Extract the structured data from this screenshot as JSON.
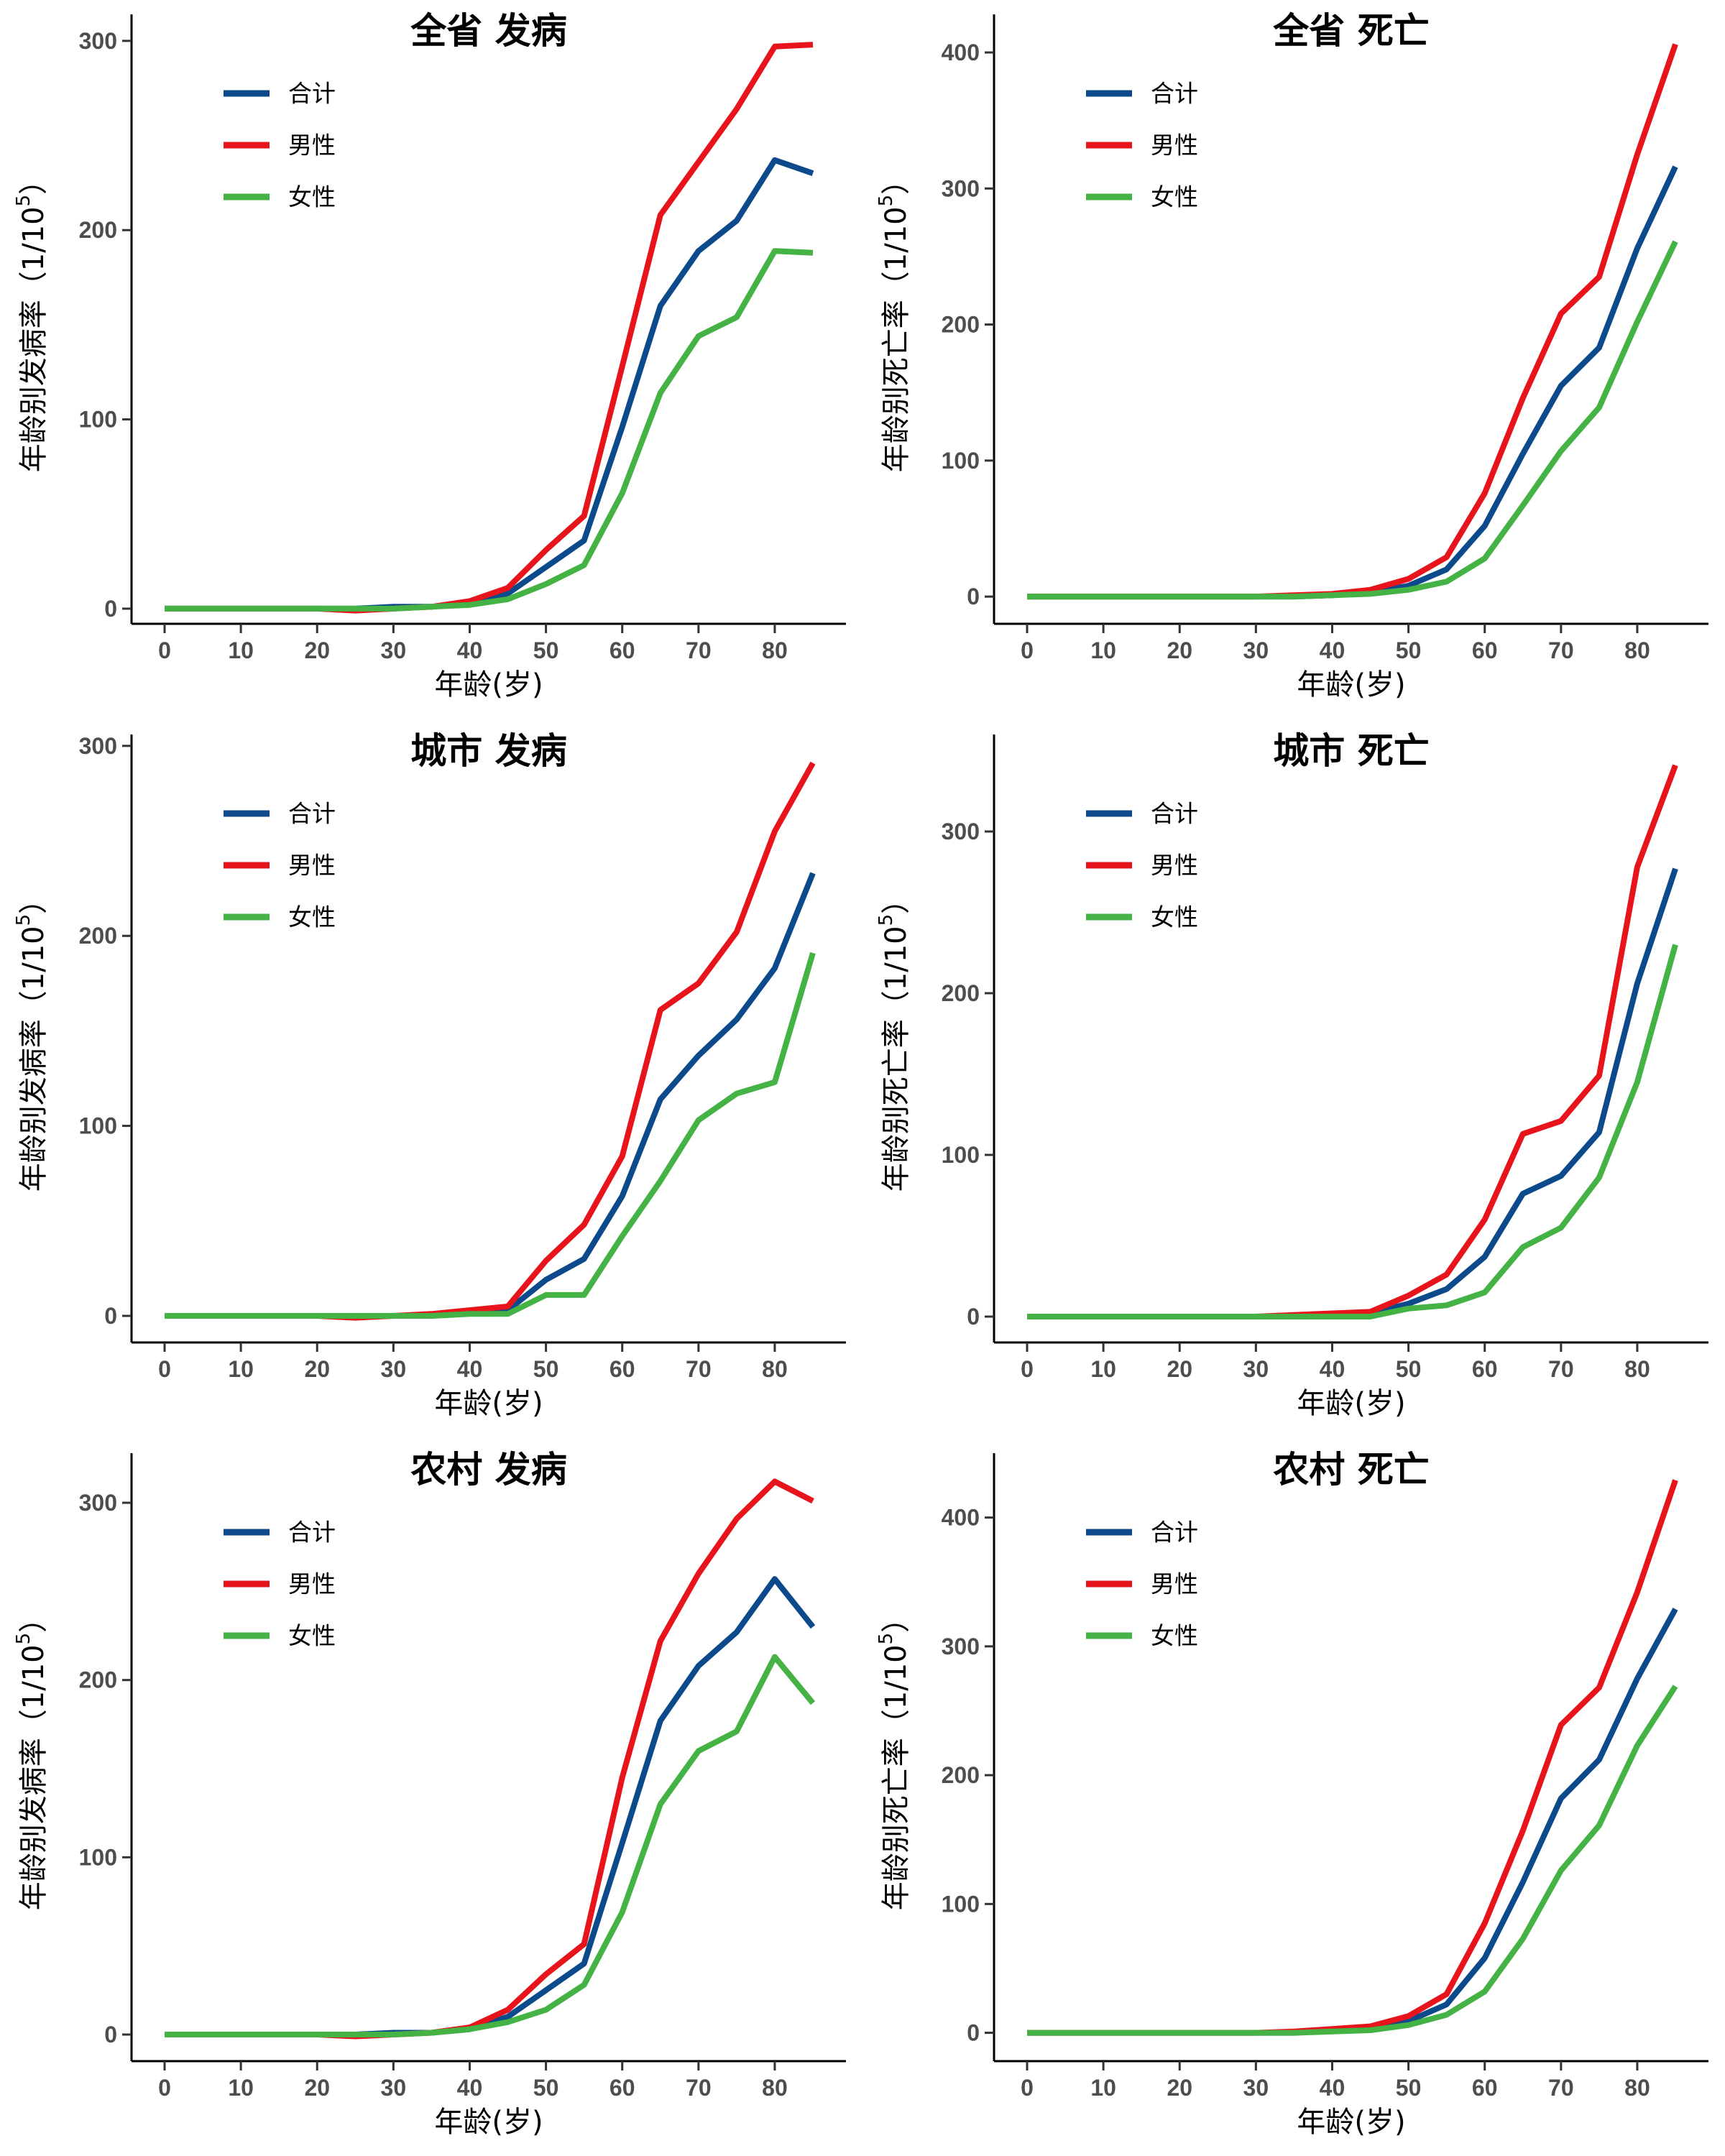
{
  "chart_data": [
    {
      "type": "line",
      "title": "全省 发病",
      "xlabel": "年龄(岁)",
      "ylabel": "年龄别发病率（1/10",
      "ylabel_sup": "5",
      "ylabel_end": "）",
      "xlim": [
        0,
        85
      ],
      "ylim": [
        -8,
        314
      ],
      "xticks": [
        0,
        10,
        20,
        30,
        40,
        50,
        60,
        70,
        80
      ],
      "yticks": [
        0,
        100,
        200,
        300
      ],
      "legend": [
        "合计",
        "男性",
        "女性"
      ],
      "legend_position": "top-left",
      "x": [
        0,
        5,
        10,
        15,
        20,
        25,
        30,
        35,
        40,
        45,
        50,
        55,
        60,
        65,
        70,
        75,
        80,
        85
      ],
      "series": [
        {
          "name": "合计",
          "color": "#0c4a8c",
          "values": [
            0,
            0,
            0,
            0,
            0,
            0,
            1,
            1,
            3,
            8,
            22,
            36,
            96,
            160,
            189,
            205,
            237,
            230
          ]
        },
        {
          "name": "男性",
          "color": "#e8141c",
          "values": [
            0,
            0,
            0,
            0,
            0,
            -1,
            0,
            1,
            4,
            11,
            31,
            49,
            128,
            208,
            236,
            264,
            297,
            298
          ]
        },
        {
          "name": "女性",
          "color": "#45b245",
          "values": [
            0,
            0,
            0,
            0,
            0,
            0,
            0,
            1,
            2,
            5,
            13,
            23,
            61,
            114,
            144,
            154,
            189,
            188
          ]
        }
      ]
    },
    {
      "type": "line",
      "title": "全省 死亡",
      "xlabel": "年龄(岁)",
      "ylabel": "年龄别死亡率（1/10",
      "ylabel_sup": "5",
      "ylabel_end": "）",
      "xlim": [
        0,
        85
      ],
      "ylim": [
        -20,
        428
      ],
      "xticks": [
        0,
        10,
        20,
        30,
        40,
        50,
        60,
        70,
        80
      ],
      "yticks": [
        0,
        100,
        200,
        300,
        400
      ],
      "legend": [
        "合计",
        "男性",
        "女性"
      ],
      "legend_position": "top-left",
      "x": [
        0,
        5,
        10,
        15,
        20,
        25,
        30,
        35,
        40,
        45,
        50,
        55,
        60,
        65,
        70,
        75,
        80,
        85
      ],
      "series": [
        {
          "name": "合计",
          "color": "#0c4a8c",
          "values": [
            0,
            0,
            0,
            0,
            0,
            0,
            0,
            0,
            1,
            3,
            8,
            20,
            52,
            105,
            155,
            183,
            256,
            316
          ]
        },
        {
          "name": "男性",
          "color": "#e8141c",
          "values": [
            0,
            0,
            0,
            0,
            0,
            0,
            0,
            1,
            2,
            5,
            13,
            29,
            76,
            146,
            208,
            235,
            325,
            406
          ]
        },
        {
          "name": "女性",
          "color": "#45b245",
          "values": [
            0,
            0,
            0,
            0,
            0,
            0,
            0,
            0,
            1,
            2,
            5,
            11,
            28,
            67,
            107,
            139,
            202,
            261
          ]
        }
      ]
    },
    {
      "type": "line",
      "title": "城市 发病",
      "xlabel": "年龄(岁)",
      "ylabel": "年龄别发病率（1/10",
      "ylabel_sup": "5",
      "ylabel_end": "）",
      "xlim": [
        0,
        85
      ],
      "ylim": [
        -14,
        306
      ],
      "xticks": [
        0,
        10,
        20,
        30,
        40,
        50,
        60,
        70,
        80
      ],
      "yticks": [
        0,
        100,
        200,
        300
      ],
      "legend": [
        "合计",
        "男性",
        "女性"
      ],
      "legend_position": "top-left",
      "x": [
        0,
        5,
        10,
        15,
        20,
        25,
        30,
        35,
        40,
        45,
        50,
        55,
        60,
        65,
        70,
        75,
        80,
        85
      ],
      "series": [
        {
          "name": "合计",
          "color": "#0c4a8c",
          "values": [
            0,
            0,
            0,
            0,
            0,
            0,
            0,
            0,
            2,
            3,
            19,
            30,
            63,
            114,
            137,
            156,
            183,
            233
          ]
        },
        {
          "name": "男性",
          "color": "#e8141c",
          "values": [
            0,
            0,
            0,
            0,
            0,
            -1,
            0,
            1,
            3,
            5,
            29,
            48,
            84,
            161,
            175,
            202,
            255,
            291
          ]
        },
        {
          "name": "女性",
          "color": "#45b245",
          "values": [
            0,
            0,
            0,
            0,
            0,
            0,
            0,
            0,
            1,
            1,
            11,
            11,
            42,
            71,
            103,
            117,
            123,
            191
          ]
        }
      ]
    },
    {
      "type": "line",
      "title": "城市 死亡",
      "xlabel": "年龄(岁)",
      "ylabel": "年龄别死亡率（1/10",
      "ylabel_sup": "5",
      "ylabel_end": "）",
      "xlim": [
        0,
        85
      ],
      "ylim": [
        -16,
        360
      ],
      "xticks": [
        0,
        10,
        20,
        30,
        40,
        50,
        60,
        70,
        80
      ],
      "yticks": [
        0,
        100,
        200,
        300
      ],
      "legend": [
        "合计",
        "男性",
        "女性"
      ],
      "legend_position": "top-left",
      "x": [
        0,
        5,
        10,
        15,
        20,
        25,
        30,
        35,
        40,
        45,
        50,
        55,
        60,
        65,
        70,
        75,
        80,
        85
      ],
      "series": [
        {
          "name": "合计",
          "color": "#0c4a8c",
          "values": [
            0,
            0,
            0,
            0,
            0,
            0,
            0,
            0,
            1,
            2,
            8,
            17,
            37,
            76,
            87,
            114,
            206,
            277
          ]
        },
        {
          "name": "男性",
          "color": "#e8141c",
          "values": [
            0,
            0,
            0,
            0,
            0,
            0,
            0,
            1,
            2,
            3,
            13,
            26,
            60,
            113,
            121,
            149,
            278,
            341
          ]
        },
        {
          "name": "女性",
          "color": "#45b245",
          "values": [
            0,
            0,
            0,
            0,
            0,
            0,
            0,
            0,
            0,
            0,
            5,
            7,
            15,
            43,
            55,
            86,
            145,
            230
          ]
        }
      ]
    },
    {
      "type": "line",
      "title": "农村 发病",
      "xlabel": "年龄(岁)",
      "ylabel": "年龄别发病率（1/10",
      "ylabel_sup": "5",
      "ylabel_end": "）",
      "xlim": [
        0,
        85
      ],
      "ylim": [
        -15,
        328
      ],
      "xticks": [
        0,
        10,
        20,
        30,
        40,
        50,
        60,
        70,
        80
      ],
      "yticks": [
        0,
        100,
        200,
        300
      ],
      "legend": [
        "合计",
        "男性",
        "女性"
      ],
      "legend_position": "top-left",
      "x": [
        0,
        5,
        10,
        15,
        20,
        25,
        30,
        35,
        40,
        45,
        50,
        55,
        60,
        65,
        70,
        75,
        80,
        85
      ],
      "series": [
        {
          "name": "合计",
          "color": "#0c4a8c",
          "values": [
            0,
            0,
            0,
            0,
            0,
            0,
            1,
            1,
            3,
            10,
            25,
            40,
            108,
            177,
            208,
            227,
            257,
            230
          ]
        },
        {
          "name": "男性",
          "color": "#e8141c",
          "values": [
            0,
            0,
            0,
            0,
            0,
            -1,
            0,
            1,
            4,
            14,
            34,
            51,
            145,
            222,
            260,
            291,
            312,
            301
          ]
        },
        {
          "name": "女性",
          "color": "#45b245",
          "values": [
            0,
            0,
            0,
            0,
            0,
            0,
            0,
            1,
            3,
            7,
            14,
            28,
            69,
            130,
            160,
            171,
            213,
            187
          ]
        }
      ]
    },
    {
      "type": "line",
      "title": "农村 死亡",
      "xlabel": "年龄(岁)",
      "ylabel": "年龄别死亡率（1/10",
      "ylabel_sup": "5",
      "ylabel_end": "）",
      "xlim": [
        0,
        85
      ],
      "ylim": [
        -22,
        450
      ],
      "xticks": [
        0,
        10,
        20,
        30,
        40,
        50,
        60,
        70,
        80
      ],
      "yticks": [
        0,
        100,
        200,
        300,
        400
      ],
      "legend": [
        "合计",
        "男性",
        "女性"
      ],
      "legend_position": "top-left",
      "x": [
        0,
        5,
        10,
        15,
        20,
        25,
        30,
        35,
        40,
        45,
        50,
        55,
        60,
        65,
        70,
        75,
        80,
        85
      ],
      "series": [
        {
          "name": "合计",
          "color": "#0c4a8c",
          "values": [
            0,
            0,
            0,
            0,
            0,
            0,
            0,
            0,
            2,
            3,
            9,
            22,
            58,
            117,
            182,
            212,
            275,
            329
          ]
        },
        {
          "name": "男性",
          "color": "#e8141c",
          "values": [
            0,
            0,
            0,
            0,
            0,
            0,
            0,
            1,
            3,
            5,
            13,
            30,
            85,
            157,
            239,
            268,
            342,
            429
          ]
        },
        {
          "name": "女性",
          "color": "#45b245",
          "values": [
            0,
            0,
            0,
            0,
            0,
            0,
            0,
            0,
            1,
            2,
            6,
            14,
            32,
            73,
            126,
            161,
            223,
            269
          ]
        }
      ]
    }
  ]
}
